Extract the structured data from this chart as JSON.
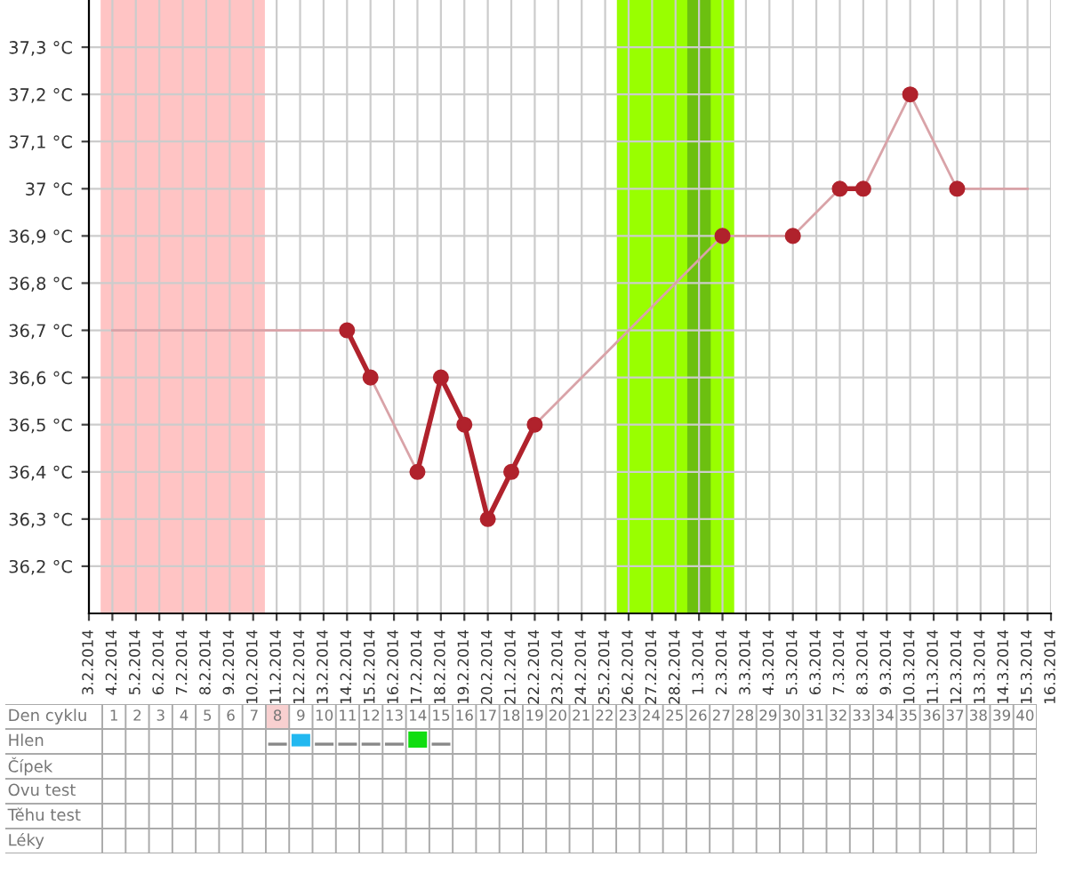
{
  "chart_data": [
    {
      "type": "line",
      "series": [
        {
          "color": "#d9a3a8",
          "marker": "none",
          "line_style": "solid",
          "x": [
            "2014-02-04",
            "2014-02-14",
            "2014-02-15",
            "2014-02-17",
            "2014-02-18",
            "2014-02-19",
            "2014-02-20",
            "2014-02-21",
            "2014-02-22",
            "2014-03-02",
            "2014-03-05",
            "2014-03-07",
            "2014-03-08",
            "2014-03-10",
            "2014-03-12",
            "2014-03-15"
          ],
          "values": [
            36.7,
            36.7,
            36.6,
            36.4,
            36.6,
            36.5,
            36.3,
            36.4,
            36.5,
            36.9,
            36.9,
            37.0,
            37.0,
            37.2,
            37.0,
            37.0
          ]
        },
        {
          "color": "#b0222c",
          "marker": "circle",
          "line_style": "solid",
          "x": [
            "2014-02-14",
            "2014-02-15",
            "2014-02-16",
            "2014-02-17",
            "2014-02-18",
            "2014-02-19",
            "2014-02-20",
            "2014-02-21",
            "2014-02-22",
            "2014-02-23",
            "2014-02-24",
            "2014-02-25",
            "2014-02-26",
            "2014-02-27",
            "2014-02-28",
            "2014-03-01",
            "2014-03-02",
            "2014-03-03",
            "2014-03-04",
            "2014-03-05",
            "2014-03-06",
            "2014-03-07",
            "2014-03-08",
            "2014-03-09",
            "2014-03-10",
            "2014-03-11",
            "2014-03-12"
          ],
          "values": [
            36.7,
            36.6,
            null,
            36.4,
            36.6,
            36.5,
            36.3,
            36.4,
            36.5,
            null,
            null,
            null,
            null,
            null,
            null,
            null,
            36.9,
            null,
            null,
            36.9,
            null,
            37.0,
            37.0,
            null,
            37.2,
            null,
            37.0
          ]
        }
      ],
      "xlim": [
        "2014-02-03",
        "2014-03-16"
      ],
      "xticks": [
        {
          "value": "2014-02-03",
          "label": "3.2.2014"
        },
        {
          "value": "2014-02-04",
          "label": "4.2.2014"
        },
        {
          "value": "2014-02-05",
          "label": "5.2.2014"
        },
        {
          "value": "2014-02-06",
          "label": "6.2.2014"
        },
        {
          "value": "2014-02-07",
          "label": "7.2.2014"
        },
        {
          "value": "2014-02-08",
          "label": "8.2.2014"
        },
        {
          "value": "2014-02-09",
          "label": "9.2.2014"
        },
        {
          "value": "2014-02-10",
          "label": "10.2.2014"
        },
        {
          "value": "2014-02-11",
          "label": "11.2.2014"
        },
        {
          "value": "2014-02-12",
          "label": "12.2.2014"
        },
        {
          "value": "2014-02-13",
          "label": "13.2.2014"
        },
        {
          "value": "2014-02-14",
          "label": "14.2.2014"
        },
        {
          "value": "2014-02-15",
          "label": "15.2.2014"
        },
        {
          "value": "2014-02-16",
          "label": "16.2.2014"
        },
        {
          "value": "2014-02-17",
          "label": "17.2.2014"
        },
        {
          "value": "2014-02-18",
          "label": "18.2.2014"
        },
        {
          "value": "2014-02-19",
          "label": "19.2.2014"
        },
        {
          "value": "2014-02-20",
          "label": "20.2.2014"
        },
        {
          "value": "2014-02-21",
          "label": "21.2.2014"
        },
        {
          "value": "2014-02-22",
          "label": "22.2.2014"
        },
        {
          "value": "2014-02-23",
          "label": "23.2.2014"
        },
        {
          "value": "2014-02-24",
          "label": "24.2.2014"
        },
        {
          "value": "2014-02-25",
          "label": "25.2.2014"
        },
        {
          "value": "2014-02-26",
          "label": "26.2.2014"
        },
        {
          "value": "2014-02-27",
          "label": "27.2.2014"
        },
        {
          "value": "2014-02-28",
          "label": "28.2.2014"
        },
        {
          "value": "2014-03-01",
          "label": "1.3.2014"
        },
        {
          "value": "2014-03-02",
          "label": "2.3.2014"
        },
        {
          "value": "2014-03-03",
          "label": "3.3.2014"
        },
        {
          "value": "2014-03-04",
          "label": "4.3.2014"
        },
        {
          "value": "2014-03-05",
          "label": "5.3.2014"
        },
        {
          "value": "2014-03-06",
          "label": "6.3.2014"
        },
        {
          "value": "2014-03-07",
          "label": "7.3.2014"
        },
        {
          "value": "2014-03-08",
          "label": "8.3.2014"
        },
        {
          "value": "2014-03-09",
          "label": "9.3.2014"
        },
        {
          "value": "2014-03-10",
          "label": "10.3.2014"
        },
        {
          "value": "2014-03-11",
          "label": "11.3.2014"
        },
        {
          "value": "2014-03-12",
          "label": "12.3.2014"
        },
        {
          "value": "2014-03-13",
          "label": "13.3.2014"
        },
        {
          "value": "2014-03-14",
          "label": "14.3.2014"
        },
        {
          "value": "2014-03-15",
          "label": "15.3.2014"
        },
        {
          "value": "2014-03-16",
          "label": "16.3.2014"
        }
      ],
      "ylim": [
        36.1,
        37.4
      ],
      "yticks": [
        {
          "value": 36.2,
          "label": "36,2 °C"
        },
        {
          "value": 36.3,
          "label": "36,3 °C"
        },
        {
          "value": 36.4,
          "label": "36,4 °C"
        },
        {
          "value": 36.5,
          "label": "36,5 °C"
        },
        {
          "value": 36.6,
          "label": "36,6 °C"
        },
        {
          "value": 36.7,
          "label": "36,7 °C"
        },
        {
          "value": 36.8,
          "label": "36,8 °C"
        },
        {
          "value": 36.9,
          "label": "36,9 °C"
        },
        {
          "value": 37.0,
          "label": "37 °C"
        },
        {
          "value": 37.1,
          "label": "37,1 °C"
        },
        {
          "value": 37.2,
          "label": "37,2 °C"
        },
        {
          "value": 37.3,
          "label": "37,3 °C"
        }
      ],
      "bands": [
        {
          "axis": "x",
          "from": "2014-02-03T12:00",
          "to": "2014-02-10T12:00",
          "color": "#ffc4c4"
        },
        {
          "axis": "x",
          "from": "2014-02-25T12:00",
          "to": "2014-03-02T12:00",
          "color": "#99ff00"
        },
        {
          "axis": "x",
          "from": "2014-02-28T12:00",
          "to": "2014-03-01T12:00",
          "color": "#6cc010"
        }
      ],
      "grid": true
    },
    {
      "type": "heatmap",
      "xlabel": "Den cyklu",
      "cells": [
        [
          null,
          null,
          null,
          null,
          null,
          null,
          null,
          null,
          null,
          null,
          null,
          null,
          null,
          null,
          null,
          null,
          null,
          null,
          null,
          null,
          null,
          null,
          null,
          null,
          null,
          null,
          null,
          null,
          null,
          null,
          null,
          null,
          null,
          null,
          null,
          null,
          null,
          null,
          null,
          null
        ],
        [
          null,
          null,
          null,
          null,
          null,
          null,
          null,
          null,
          null,
          null,
          null,
          null,
          null,
          null,
          null,
          null,
          null,
          null,
          null,
          null,
          null,
          null,
          null,
          null,
          null,
          null,
          null,
          null,
          null,
          null,
          null,
          null,
          null,
          null,
          null,
          null,
          null,
          null,
          null,
          null
        ],
        [
          null,
          null,
          null,
          null,
          null,
          null,
          null,
          null,
          null,
          null,
          null,
          null,
          null,
          null,
          null,
          null,
          null,
          null,
          null,
          null,
          null,
          null,
          null,
          null,
          null,
          null,
          null,
          null,
          null,
          null,
          null,
          null,
          null,
          null,
          null,
          null,
          null,
          null,
          null,
          null
        ],
        [
          null,
          null,
          null,
          null,
          null,
          null,
          null,
          null,
          null,
          null,
          null,
          null,
          null,
          null,
          null,
          null,
          null,
          null,
          null,
          null,
          null,
          null,
          null,
          null,
          null,
          null,
          null,
          null,
          null,
          null,
          null,
          null,
          null,
          null,
          null,
          null,
          null,
          null,
          null,
          null
        ],
        [
          null,
          null,
          null,
          null,
          null,
          null,
          null,
          null,
          null,
          null,
          null,
          null,
          null,
          null,
          null,
          null,
          null,
          null,
          null,
          null,
          null,
          null,
          null,
          null,
          null,
          null,
          null,
          null,
          null,
          null,
          null,
          null,
          null,
          null,
          null,
          null,
          null,
          null,
          null,
          null
        ]
      ],
      "categories": [
        "1",
        "2",
        "3",
        "4",
        "5",
        "6",
        "7",
        "8",
        "9",
        "10",
        "11",
        "12",
        "13",
        "14",
        "15",
        "16",
        "17",
        "18",
        "19",
        "20",
        "21",
        "22",
        "23",
        "24",
        "25",
        "26",
        "27",
        "28",
        "29",
        "30",
        "31",
        "32",
        "33",
        "34",
        "35",
        "36",
        "37",
        "38",
        "39",
        "40"
      ],
      "y_categories": [
        "Hlen",
        "Čípek",
        "Ovu test",
        "Těhu test",
        "Léky"
      ]
    }
  ]
}
